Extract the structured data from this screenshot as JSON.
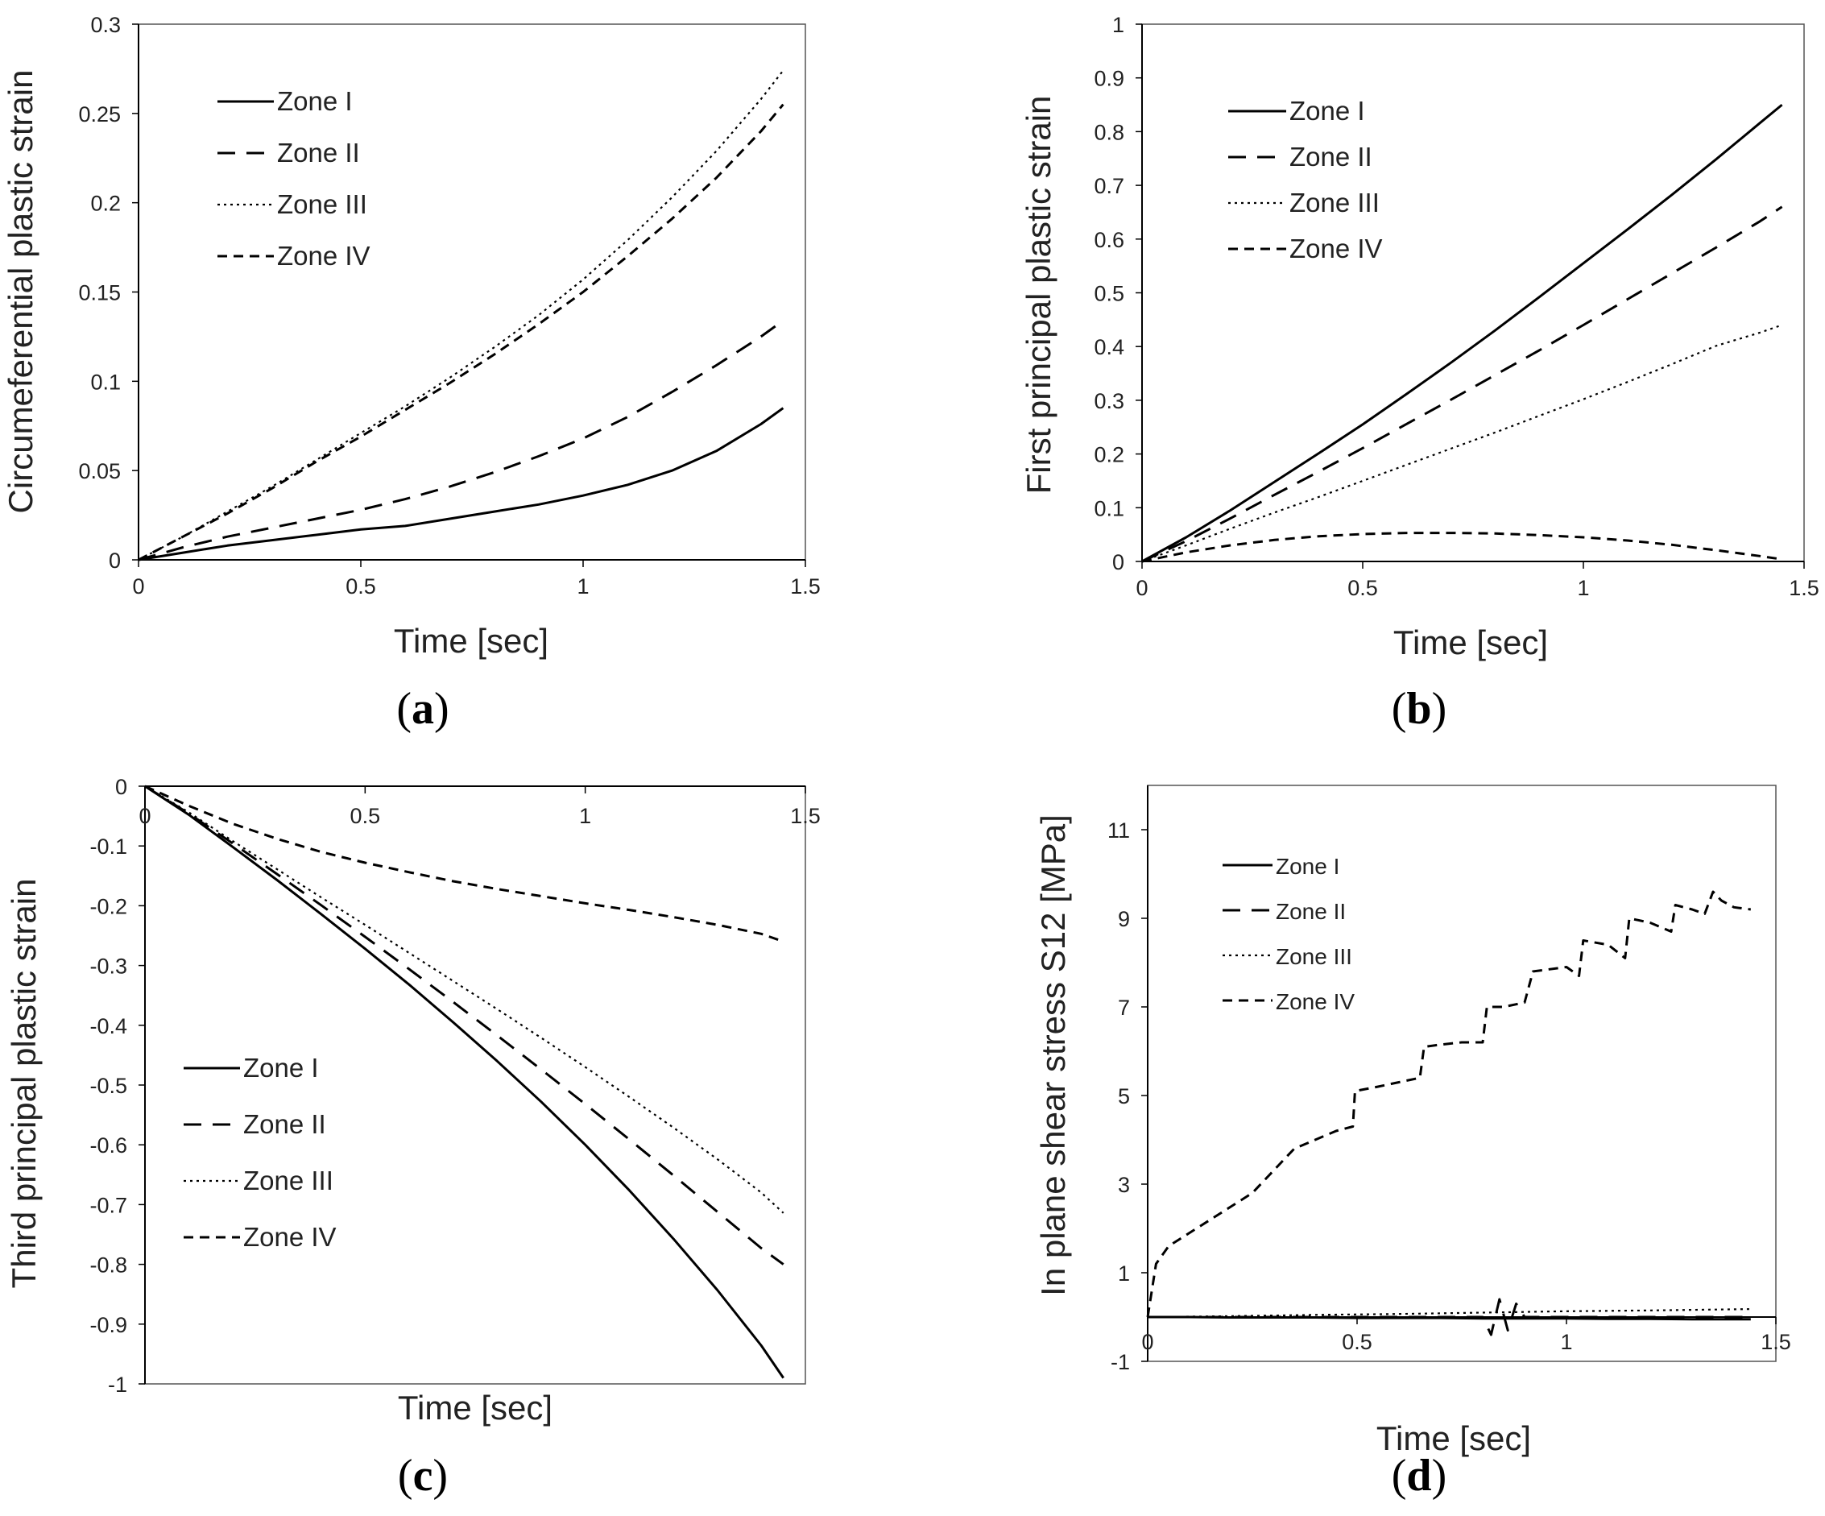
{
  "colors": {
    "line": "#000000",
    "axis": "#000000",
    "frame": "#555555",
    "text": "#222222"
  },
  "chart_data": [
    {
      "id": "a",
      "type": "line",
      "caption_letter": "a",
      "xlabel": "Time [sec]",
      "ylabel": "Circumeferential  plastic strain",
      "xlim": [
        0,
        1.5
      ],
      "ylim": [
        0,
        0.3
      ],
      "x_ticks": [
        "0",
        "0.5",
        "1",
        "1.5"
      ],
      "y_ticks": [
        "0",
        "0.05",
        "0.1",
        "0.15",
        "0.2",
        "0.25",
        "0.3"
      ],
      "legend": "top-left",
      "series": [
        {
          "name": "Zone I",
          "style": "solid",
          "x": [
            0,
            0.1,
            0.2,
            0.3,
            0.4,
            0.5,
            0.6,
            0.7,
            0.8,
            0.9,
            1.0,
            1.1,
            1.2,
            1.3,
            1.4,
            1.45
          ],
          "y": [
            0,
            0.004,
            0.008,
            0.011,
            0.014,
            0.017,
            0.019,
            0.023,
            0.027,
            0.031,
            0.036,
            0.042,
            0.05,
            0.061,
            0.076,
            0.085
          ]
        },
        {
          "name": "Zone II",
          "style": "dashed",
          "x": [
            0,
            0.1,
            0.2,
            0.3,
            0.4,
            0.5,
            0.6,
            0.7,
            0.8,
            0.9,
            1.0,
            1.1,
            1.2,
            1.3,
            1.4,
            1.45
          ],
          "y": [
            0,
            0.007,
            0.013,
            0.018,
            0.023,
            0.028,
            0.034,
            0.041,
            0.049,
            0.058,
            0.068,
            0.08,
            0.094,
            0.109,
            0.125,
            0.134
          ]
        },
        {
          "name": "Zone III",
          "style": "dotted",
          "x": [
            0,
            0.1,
            0.2,
            0.3,
            0.4,
            0.5,
            0.6,
            0.7,
            0.8,
            0.9,
            1.0,
            1.1,
            1.2,
            1.3,
            1.4,
            1.45
          ],
          "y": [
            0,
            0.013,
            0.027,
            0.041,
            0.056,
            0.071,
            0.086,
            0.102,
            0.119,
            0.137,
            0.157,
            0.179,
            0.203,
            0.229,
            0.258,
            0.274
          ]
        },
        {
          "name": "Zone IV",
          "style": "shortdash",
          "x": [
            0,
            0.1,
            0.2,
            0.3,
            0.4,
            0.5,
            0.6,
            0.7,
            0.8,
            0.9,
            1.0,
            1.1,
            1.2,
            1.3,
            1.4,
            1.45
          ],
          "y": [
            0,
            0.013,
            0.026,
            0.04,
            0.055,
            0.069,
            0.084,
            0.099,
            0.115,
            0.132,
            0.15,
            0.17,
            0.191,
            0.214,
            0.24,
            0.255
          ]
        }
      ]
    },
    {
      "id": "b",
      "type": "line",
      "caption_letter": "b",
      "xlabel": "Time [sec]",
      "ylabel": "First principal plastic strain",
      "xlim": [
        0,
        1.5
      ],
      "ylim": [
        0,
        1
      ],
      "x_ticks": [
        "0",
        "0.5",
        "1",
        "1.5"
      ],
      "y_ticks": [
        "0",
        "0.1",
        "0.2",
        "0.3",
        "0.4",
        "0.5",
        "0.6",
        "0.7",
        "0.8",
        "0.9",
        "1"
      ],
      "legend": "top-left",
      "series": [
        {
          "name": "Zone I",
          "style": "solid",
          "x": [
            0,
            0.1,
            0.2,
            0.3,
            0.4,
            0.5,
            0.6,
            0.7,
            0.8,
            0.9,
            1.0,
            1.1,
            1.2,
            1.3,
            1.4,
            1.45
          ],
          "y": [
            0,
            0.045,
            0.095,
            0.148,
            0.201,
            0.255,
            0.312,
            0.37,
            0.43,
            0.492,
            0.555,
            0.618,
            0.682,
            0.748,
            0.816,
            0.85
          ]
        },
        {
          "name": "Zone II",
          "style": "dashed",
          "x": [
            0,
            0.1,
            0.2,
            0.3,
            0.4,
            0.5,
            0.6,
            0.7,
            0.8,
            0.9,
            1.0,
            1.1,
            1.2,
            1.3,
            1.4,
            1.45
          ],
          "y": [
            0,
            0.038,
            0.08,
            0.124,
            0.167,
            0.211,
            0.256,
            0.301,
            0.347,
            0.393,
            0.44,
            0.488,
            0.536,
            0.584,
            0.633,
            0.66
          ]
        },
        {
          "name": "Zone III",
          "style": "dotted",
          "x": [
            0,
            0.1,
            0.2,
            0.3,
            0.4,
            0.5,
            0.6,
            0.7,
            0.8,
            0.9,
            1.0,
            1.1,
            1.2,
            1.3,
            1.4,
            1.45
          ],
          "y": [
            0,
            0.03,
            0.061,
            0.091,
            0.12,
            0.15,
            0.18,
            0.21,
            0.24,
            0.271,
            0.302,
            0.334,
            0.367,
            0.401,
            0.426,
            0.44
          ]
        },
        {
          "name": "Zone IV",
          "style": "shortdash",
          "x": [
            0,
            0.1,
            0.2,
            0.3,
            0.4,
            0.5,
            0.6,
            0.7,
            0.8,
            0.9,
            1.0,
            1.1,
            1.2,
            1.3,
            1.4,
            1.45
          ],
          "y": [
            0,
            0.017,
            0.03,
            0.04,
            0.047,
            0.051,
            0.053,
            0.053,
            0.052,
            0.049,
            0.045,
            0.039,
            0.031,
            0.021,
            0.01,
            0.004
          ]
        }
      ]
    },
    {
      "id": "c",
      "type": "line",
      "caption_letter": "c",
      "xlabel": "Time [sec]",
      "ylabel": "Third principal plastic strain",
      "xlim": [
        0,
        1.5
      ],
      "ylim": [
        -1,
        0
      ],
      "x_ticks": [
        "0",
        "0.5",
        "1",
        "1.5"
      ],
      "y_ticks": [
        "-1",
        "-0.9",
        "-0.8",
        "-0.7",
        "-0.6",
        "-0.5",
        "-0.4",
        "-0.3",
        "-0.2",
        "-0.1",
        "0"
      ],
      "legend": "bottom-left",
      "series": [
        {
          "name": "Zone I",
          "style": "solid",
          "x": [
            0,
            0.1,
            0.2,
            0.3,
            0.4,
            0.5,
            0.6,
            0.7,
            0.8,
            0.9,
            1.0,
            1.1,
            1.2,
            1.3,
            1.4,
            1.45
          ],
          "y": [
            0,
            -0.048,
            -0.102,
            -0.157,
            -0.214,
            -0.272,
            -0.332,
            -0.395,
            -0.46,
            -0.528,
            -0.6,
            -0.676,
            -0.757,
            -0.843,
            -0.936,
            -0.99
          ]
        },
        {
          "name": "Zone II",
          "style": "dashed",
          "x": [
            0,
            0.1,
            0.2,
            0.3,
            0.4,
            0.5,
            0.6,
            0.7,
            0.8,
            0.9,
            1.0,
            1.1,
            1.2,
            1.3,
            1.4,
            1.45
          ],
          "y": [
            0,
            -0.046,
            -0.096,
            -0.147,
            -0.199,
            -0.252,
            -0.306,
            -0.361,
            -0.417,
            -0.474,
            -0.532,
            -0.591,
            -0.651,
            -0.712,
            -0.773,
            -0.8
          ]
        },
        {
          "name": "Zone III",
          "style": "dotted",
          "x": [
            0,
            0.1,
            0.2,
            0.3,
            0.4,
            0.5,
            0.6,
            0.7,
            0.8,
            0.9,
            1.0,
            1.1,
            1.2,
            1.3,
            1.4,
            1.45
          ],
          "y": [
            0,
            -0.044,
            -0.092,
            -0.139,
            -0.186,
            -0.232,
            -0.279,
            -0.326,
            -0.373,
            -0.421,
            -0.47,
            -0.52,
            -0.571,
            -0.624,
            -0.68,
            -0.714
          ]
        },
        {
          "name": "Zone IV",
          "style": "shortdash",
          "x": [
            0,
            0.1,
            0.2,
            0.3,
            0.4,
            0.5,
            0.6,
            0.7,
            0.8,
            0.9,
            1.0,
            1.1,
            1.2,
            1.3,
            1.4,
            1.45
          ],
          "y": [
            0,
            -0.033,
            -0.063,
            -0.088,
            -0.11,
            -0.128,
            -0.144,
            -0.159,
            -0.172,
            -0.184,
            -0.196,
            -0.207,
            -0.219,
            -0.232,
            -0.247,
            -0.26
          ]
        }
      ]
    },
    {
      "id": "d",
      "type": "line",
      "caption_letter": "d",
      "xlabel": "Time [sec]",
      "ylabel": "In plane shear stress S12 [MPa]",
      "xlim": [
        0,
        1.5
      ],
      "ylim": [
        -1,
        12
      ],
      "x_ticks": [
        "0",
        "0.5",
        "1",
        "1.5"
      ],
      "y_ticks": [
        "-1",
        "1",
        "3",
        "5",
        "7",
        "9",
        "11"
      ],
      "legend": "top-left",
      "series": [
        {
          "name": "Zone I",
          "style": "solid",
          "x": [
            0,
            0.1,
            0.2,
            0.3,
            0.4,
            0.5,
            0.6,
            0.7,
            0.8,
            0.9,
            1.0,
            1.1,
            1.2,
            1.3,
            1.4,
            1.44
          ],
          "y": [
            0,
            0,
            -0.01,
            -0.01,
            -0.01,
            -0.02,
            -0.02,
            -0.02,
            -0.03,
            -0.03,
            -0.03,
            -0.04,
            -0.04,
            -0.05,
            -0.05,
            -0.05
          ]
        },
        {
          "name": "Zone II",
          "style": "dashed",
          "x": [
            0,
            0.4,
            0.8,
            0.82,
            0.84,
            0.86,
            0.88,
            0.9,
            1.0,
            1.2,
            1.44
          ],
          "y": [
            0,
            0,
            0,
            -0.4,
            0.4,
            -0.3,
            0.3,
            0,
            0,
            0,
            0
          ]
        },
        {
          "name": "Zone III",
          "style": "dotted",
          "x": [
            0,
            0.2,
            0.4,
            0.6,
            0.8,
            1.0,
            1.2,
            1.44
          ],
          "y": [
            0,
            0.02,
            0.05,
            0.07,
            0.1,
            0.13,
            0.15,
            0.18
          ]
        },
        {
          "name": "Zone IV",
          "style": "shortdash",
          "x": [
            0,
            0.01,
            0.02,
            0.05,
            0.1,
            0.15,
            0.2,
            0.25,
            0.3,
            0.35,
            0.4,
            0.45,
            0.49,
            0.495,
            0.55,
            0.6,
            0.65,
            0.66,
            0.7,
            0.75,
            0.8,
            0.81,
            0.85,
            0.9,
            0.92,
            1.0,
            1.03,
            1.04,
            1.1,
            1.14,
            1.15,
            1.2,
            1.25,
            1.26,
            1.3,
            1.33,
            1.35,
            1.37,
            1.4,
            1.44
          ],
          "y": [
            0,
            0.6,
            1.2,
            1.6,
            1.9,
            2.2,
            2.5,
            2.8,
            3.3,
            3.8,
            4.0,
            4.2,
            4.3,
            5.1,
            5.2,
            5.3,
            5.4,
            6.1,
            6.15,
            6.2,
            6.2,
            7.0,
            7.0,
            7.1,
            7.8,
            7.9,
            7.7,
            8.5,
            8.4,
            8.1,
            9.0,
            8.9,
            8.7,
            9.3,
            9.2,
            9.1,
            9.6,
            9.4,
            9.25,
            9.2
          ]
        }
      ]
    }
  ]
}
